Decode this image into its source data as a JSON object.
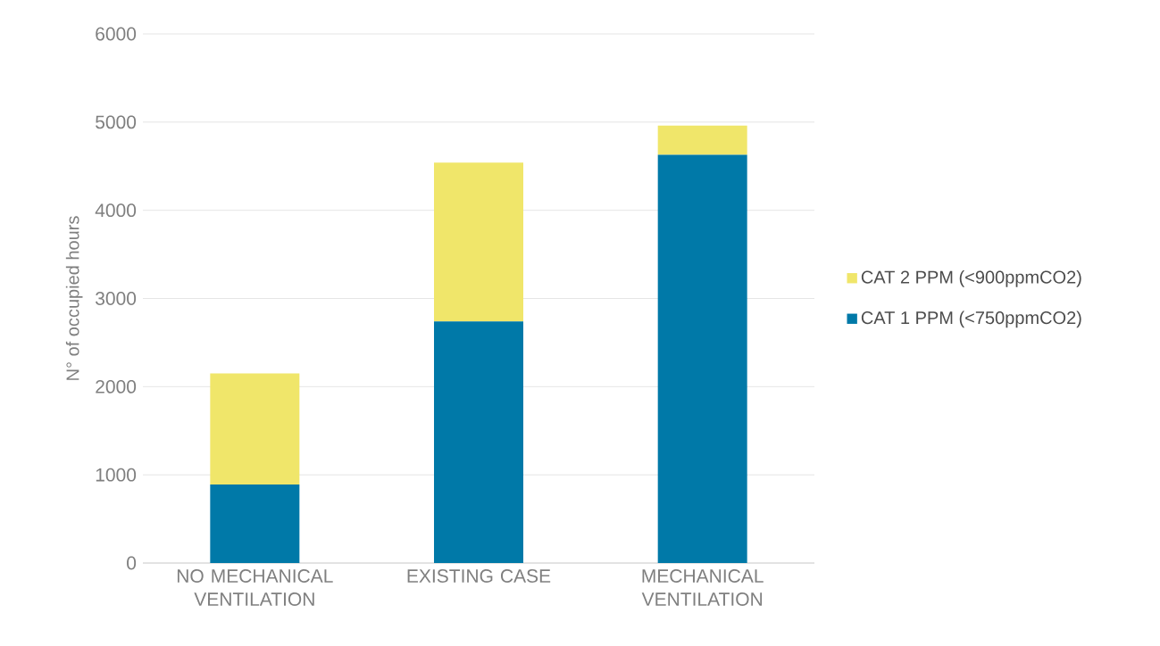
{
  "chart_data": {
    "type": "bar",
    "stacked": true,
    "ylabel": "N° of occupied hours",
    "categories": [
      "NO MECHANICAL VENTILATION",
      "EXISTING CASE",
      "MECHANICAL VENTILATION"
    ],
    "series": [
      {
        "name": "CAT 1 PPM (<750ppmCO2)",
        "color": "#0079a8",
        "values": [
          890,
          2740,
          4630
        ]
      },
      {
        "name": "CAT 2 PPM (<900ppmCO2)",
        "color": "#f0e66a",
        "values": [
          1260,
          1800,
          330
        ]
      }
    ],
    "ylim": [
      0,
      6000
    ],
    "yticks": [
      0,
      1000,
      2000,
      3000,
      4000,
      5000,
      6000
    ],
    "grid": "y",
    "legend": "right"
  }
}
